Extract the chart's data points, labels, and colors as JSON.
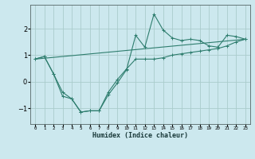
{
  "xlabel": "Humidex (Indice chaleur)",
  "ylabel": "",
  "bg_color": "#cce8ee",
  "grid_color": "#aacccc",
  "line_color": "#2e7d6e",
  "xlim": [
    -0.5,
    23.5
  ],
  "ylim": [
    -1.6,
    2.9
  ],
  "yticks": [
    -1,
    0,
    1,
    2
  ],
  "xticks": [
    0,
    1,
    2,
    3,
    4,
    5,
    6,
    7,
    8,
    9,
    10,
    11,
    12,
    13,
    14,
    15,
    16,
    17,
    18,
    19,
    20,
    21,
    22,
    23
  ],
  "line1_x": [
    0,
    1,
    2,
    3,
    4,
    5,
    6,
    7,
    8,
    9,
    10,
    11,
    12,
    13,
    14,
    15,
    16,
    17,
    18,
    19,
    20,
    21,
    22,
    23
  ],
  "line1_y": [
    0.85,
    0.95,
    0.3,
    -0.55,
    -0.65,
    -1.15,
    -1.1,
    -1.1,
    -0.5,
    -0.05,
    0.45,
    1.75,
    1.3,
    2.55,
    1.95,
    1.65,
    1.55,
    1.6,
    1.55,
    1.35,
    1.3,
    1.75,
    1.7,
    1.6
  ],
  "line2_x": [
    0,
    1,
    2,
    3,
    4,
    5,
    6,
    7,
    8,
    9,
    10,
    11,
    12,
    13,
    14,
    15,
    16,
    17,
    18,
    19,
    20,
    21,
    22,
    23
  ],
  "line2_y": [
    0.85,
    0.95,
    0.3,
    -0.4,
    -0.65,
    -1.15,
    -1.1,
    -1.1,
    -0.4,
    0.08,
    0.48,
    0.85,
    0.85,
    0.85,
    0.9,
    1.0,
    1.05,
    1.1,
    1.15,
    1.2,
    1.25,
    1.35,
    1.5,
    1.6
  ],
  "line3_x": [
    0,
    23
  ],
  "line3_y": [
    0.85,
    1.6
  ]
}
